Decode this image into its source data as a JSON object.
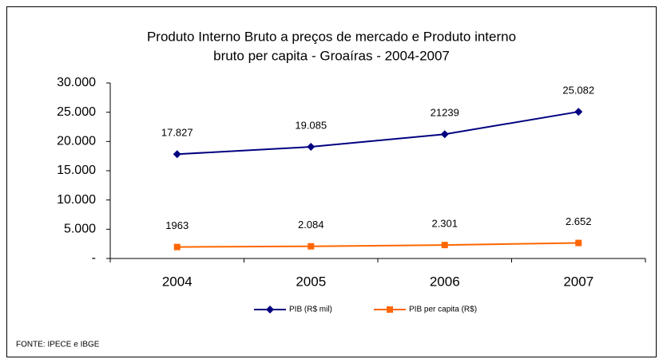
{
  "chart_data": {
    "type": "line",
    "title": [
      "Produto Interno Bruto a preços de mercado  e   Produto interno",
      "bruto per capita - Groaíras - 2004-2007"
    ],
    "categories": [
      "2004",
      "2005",
      "2006",
      "2007"
    ],
    "series": [
      {
        "name": "PIB (R$ mil)",
        "color": "#000080",
        "marker": "diamond",
        "values": [
          17827,
          19085,
          21239,
          25082
        ],
        "value_labels": [
          "17.827",
          "19.085",
          "21239",
          "25.082"
        ]
      },
      {
        "name": "PIB per capita (R$)",
        "color": "#ff6600",
        "marker": "square",
        "values": [
          1963,
          2084,
          2301,
          2652
        ],
        "value_labels": [
          "1963",
          "2.084",
          "2.301",
          "2.652"
        ]
      }
    ],
    "ylim": [
      0,
      30000
    ],
    "yticks": [
      {
        "value": 0,
        "label": "-"
      },
      {
        "value": 5000,
        "label": "5.000"
      },
      {
        "value": 10000,
        "label": "10.000"
      },
      {
        "value": 15000,
        "label": "15.000"
      },
      {
        "value": 20000,
        "label": "20.000"
      },
      {
        "value": 25000,
        "label": "25.000"
      },
      {
        "value": 30000,
        "label": "30.000"
      }
    ],
    "legend": "bottom",
    "source": "FONTE: IPECE e IBGE"
  }
}
